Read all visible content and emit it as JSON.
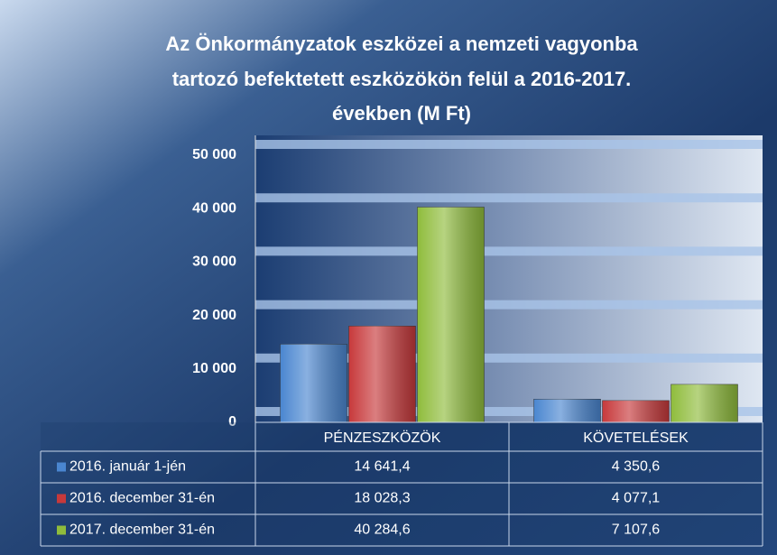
{
  "chart_data": {
    "type": "bar",
    "title": [
      "Az Önkormányzatok eszközei a nemzeti vagyonba",
      "tartozó befektetett eszközökön felül a 2016-2017.",
      "években (M Ft)"
    ],
    "categories": [
      "PÉNZESZKÖZÖK",
      "KÖVETELÉSEK"
    ],
    "series": [
      {
        "name": "2016. január 1-jén",
        "color": "#4a86d0",
        "values": [
          14641.4,
          4350.6
        ],
        "value_labels": [
          "14 641,4",
          "4 350,6"
        ]
      },
      {
        "name": "2016. december 31-én",
        "color": "#c7393b",
        "values": [
          18028.3,
          4077.1
        ],
        "value_labels": [
          "18 028,3",
          "4 077,1"
        ]
      },
      {
        "name": "2017. december 31-én",
        "color": "#8fbc3c",
        "values": [
          40284.6,
          7107.6
        ],
        "value_labels": [
          "40 284,6",
          "7 107,6"
        ]
      }
    ],
    "ylim": [
      0,
      50000
    ],
    "yticks": [
      0,
      {
        "value": 10000,
        "label": "10 000"
      },
      {
        "value": 20000,
        "label": "20 000"
      },
      {
        "value": 30000,
        "label": "30 000"
      },
      {
        "value": 40000,
        "label": "40 000"
      },
      {
        "value": 50000,
        "label": "50 000"
      }
    ],
    "grid": true
  }
}
